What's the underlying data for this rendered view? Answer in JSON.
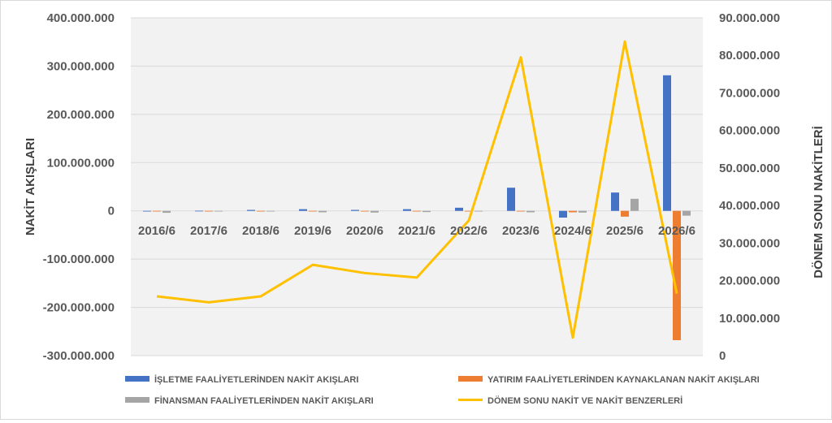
{
  "chart_data": {
    "type": "bar+line",
    "categories": [
      "2016/6",
      "2017/6",
      "2018/6",
      "2019/6",
      "2020/6",
      "2021/6",
      "2022/6",
      "2023/6",
      "2024/6",
      "2025/6",
      "2026/6"
    ],
    "left_axis": {
      "label": "NAKİT AKIŞLARI",
      "range": [
        -300000000,
        400000000
      ],
      "ticks": [
        400000000,
        300000000,
        200000000,
        100000000,
        0,
        -100000000,
        -200000000,
        -300000000
      ],
      "tick_labels": [
        "400.000.000",
        "300.000.000",
        "200.000.000",
        "100.000.000",
        "0",
        "-100.000.000",
        "-200.000.000",
        "-300.000.000"
      ]
    },
    "right_axis": {
      "label": "DÖNEM SONU NAKİTLERİ",
      "range": [
        0,
        90000000
      ],
      "ticks": [
        90000000,
        80000000,
        70000000,
        60000000,
        50000000,
        40000000,
        30000000,
        20000000,
        10000000,
        0
      ],
      "tick_labels": [
        "90.000.000",
        "80.000.000",
        "70.000.000",
        "60.000.000",
        "50.000.000",
        "40.000.000",
        "30.000.000",
        "20.000.000",
        "10.000.000",
        "0"
      ]
    },
    "series": [
      {
        "name": "İŞLETME FAALİYETLERİNDEN NAKİT AKIŞLARI",
        "type": "bar",
        "axis": "left",
        "color": "#4472c4",
        "values": [
          -1000000,
          300000,
          2000000,
          3500000,
          2000000,
          3500000,
          6500000,
          48000000,
          -14000000,
          38000000,
          281000000
        ]
      },
      {
        "name": "YATIRIM FAALİYETLERİNDEN KAYNAKLANAN NAKİT AKIŞLARI",
        "type": "bar",
        "axis": "left",
        "color": "#ed7d31",
        "values": [
          -500000,
          -300000,
          -400000,
          -800000,
          -600000,
          -800000,
          -1000000,
          -1200000,
          -3000000,
          -12000000,
          -268000000
        ]
      },
      {
        "name": "FİNANSMAN FAALİYETLERİNDEN NAKİT AKIŞLARI",
        "type": "bar",
        "axis": "left",
        "color": "#a5a5a5",
        "values": [
          -4000000,
          -600000,
          -700000,
          -3000000,
          -3500000,
          -2500000,
          -1000000,
          -3000000,
          -3500000,
          25000000,
          -10000000
        ]
      },
      {
        "name": "DÖNEM SONU NAKİT VE NAKİT BENZERLERİ",
        "type": "line",
        "axis": "right",
        "color": "#ffc000",
        "values": [
          15800000,
          14200000,
          15800000,
          24200000,
          22000000,
          20800000,
          36000000,
          79500000,
          4800000,
          83700000,
          16500000
        ]
      }
    ],
    "grid": true,
    "legend": "bottom"
  }
}
